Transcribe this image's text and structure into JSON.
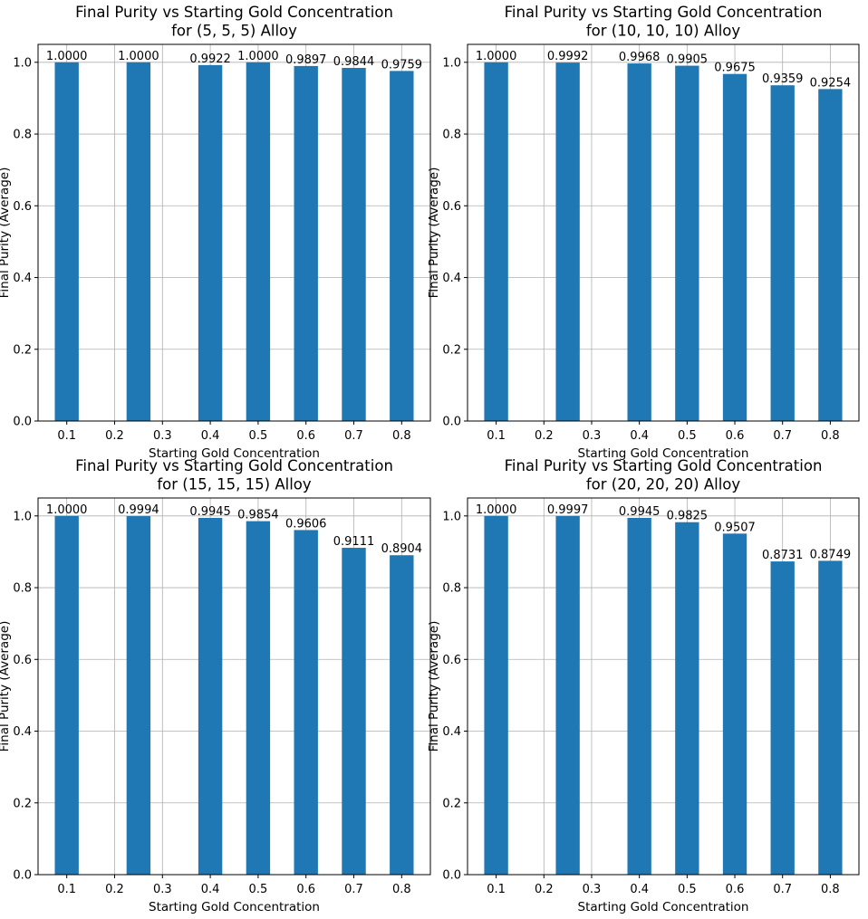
{
  "colors": {
    "bar": "#1f77b4",
    "grid": "#b0b0b0",
    "axis": "#000000"
  },
  "chart_data": [
    {
      "type": "bar",
      "title": "Final Purity vs Starting Gold Concentration\nfor (5, 5, 5) Alloy",
      "xlabel": "Starting Gold Concentration",
      "ylabel": "Final Purity (Average)",
      "x": [
        0.1,
        0.25,
        0.4,
        0.5,
        0.6,
        0.7,
        0.8
      ],
      "values": [
        1.0,
        1.0,
        0.9922,
        1.0,
        0.9897,
        0.9844,
        0.9759
      ],
      "labels": [
        "1.0000",
        "1.0000",
        "0.9922",
        "1.0000",
        "0.9897",
        "0.9844",
        "0.9759"
      ],
      "xticks": [
        "0.1",
        "0.2",
        "0.3",
        "0.4",
        "0.5",
        "0.6",
        "0.7",
        "0.8"
      ],
      "yticks": [
        "0.0",
        "0.2",
        "0.4",
        "0.6",
        "0.8",
        "1.0"
      ],
      "xlim": [
        0.04,
        0.86
      ],
      "ylim": [
        0,
        1.05
      ],
      "grid": true,
      "legend": "none"
    },
    {
      "type": "bar",
      "title": "Final Purity vs Starting Gold Concentration\nfor (10, 10, 10) Alloy",
      "xlabel": "Starting Gold Concentration",
      "ylabel": "Final Purity (Average)",
      "x": [
        0.1,
        0.25,
        0.4,
        0.5,
        0.6,
        0.7,
        0.8
      ],
      "values": [
        1.0,
        0.9992,
        0.9968,
        0.9905,
        0.9675,
        0.9359,
        0.9254
      ],
      "labels": [
        "1.0000",
        "0.9992",
        "0.9968",
        "0.9905",
        "0.9675",
        "0.9359",
        "0.9254"
      ],
      "xticks": [
        "0.1",
        "0.2",
        "0.3",
        "0.4",
        "0.5",
        "0.6",
        "0.7",
        "0.8"
      ],
      "yticks": [
        "0.0",
        "0.2",
        "0.4",
        "0.6",
        "0.8",
        "1.0"
      ],
      "xlim": [
        0.04,
        0.86
      ],
      "ylim": [
        0,
        1.05
      ],
      "grid": true,
      "legend": "none"
    },
    {
      "type": "bar",
      "title": "Final Purity vs Starting Gold Concentration\nfor (15, 15, 15) Alloy",
      "xlabel": "Starting Gold Concentration",
      "ylabel": "Final Purity (Average)",
      "x": [
        0.1,
        0.25,
        0.4,
        0.5,
        0.6,
        0.7,
        0.8
      ],
      "values": [
        1.0,
        0.9994,
        0.9945,
        0.9854,
        0.9606,
        0.9111,
        0.8904
      ],
      "labels": [
        "1.0000",
        "0.9994",
        "0.9945",
        "0.9854",
        "0.9606",
        "0.9111",
        "0.8904"
      ],
      "xticks": [
        "0.1",
        "0.2",
        "0.3",
        "0.4",
        "0.5",
        "0.6",
        "0.7",
        "0.8"
      ],
      "yticks": [
        "0.0",
        "0.2",
        "0.4",
        "0.6",
        "0.8",
        "1.0"
      ],
      "xlim": [
        0.04,
        0.86
      ],
      "ylim": [
        0,
        1.05
      ],
      "grid": true,
      "legend": "none"
    },
    {
      "type": "bar",
      "title": "Final Purity vs Starting Gold Concentration\nfor (20, 20, 20) Alloy",
      "xlabel": "Starting Gold Concentration",
      "ylabel": "Final Purity (Average)",
      "x": [
        0.1,
        0.25,
        0.4,
        0.5,
        0.6,
        0.7,
        0.8
      ],
      "values": [
        1.0,
        0.9997,
        0.9945,
        0.9825,
        0.9507,
        0.8731,
        0.8749
      ],
      "labels": [
        "1.0000",
        "0.9997",
        "0.9945",
        "0.9825",
        "0.9507",
        "0.8731",
        "0.8749"
      ],
      "xticks": [
        "0.1",
        "0.2",
        "0.3",
        "0.4",
        "0.5",
        "0.6",
        "0.7",
        "0.8"
      ],
      "yticks": [
        "0.0",
        "0.2",
        "0.4",
        "0.6",
        "0.8",
        "1.0"
      ],
      "xlim": [
        0.04,
        0.86
      ],
      "ylim": [
        0,
        1.05
      ],
      "grid": true,
      "legend": "none"
    }
  ]
}
